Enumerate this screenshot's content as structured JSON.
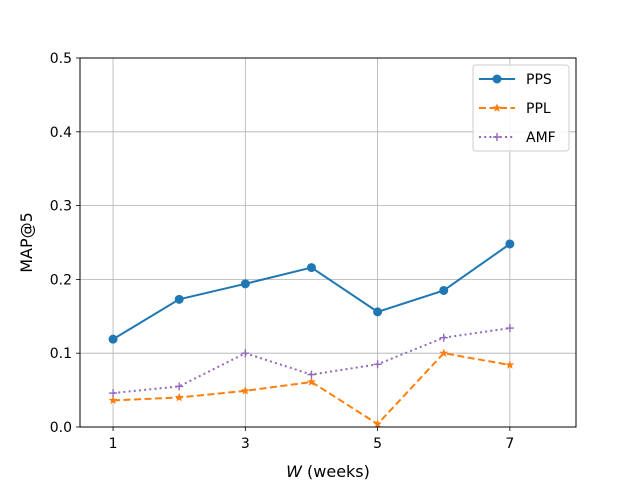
{
  "chart_data": {
    "type": "line",
    "xlabel": {
      "var": "W",
      "rest": " (weeks)"
    },
    "ylabel": "MAP@5",
    "xlim": [
      0.5,
      8
    ],
    "ylim": [
      0,
      0.5
    ],
    "xticks": [
      1,
      3,
      5,
      7
    ],
    "yticks": [
      0.0,
      0.1,
      0.2,
      0.3,
      0.4,
      0.5
    ],
    "ytick_labels": [
      "0.0",
      "0.1",
      "0.2",
      "0.3",
      "0.4",
      "0.5"
    ],
    "grid": true,
    "legend_position": "top-right",
    "x": [
      1,
      2,
      3,
      4,
      5,
      6,
      7
    ],
    "series": [
      {
        "name": "PPS",
        "color": "#1f77b4",
        "marker": "circle",
        "linestyle": "solid",
        "values": [
          0.119,
          0.173,
          0.194,
          0.216,
          0.156,
          0.185,
          0.248
        ]
      },
      {
        "name": "PPL",
        "color": "#ff7f0e",
        "marker": "star",
        "linestyle": "dashed",
        "values": [
          0.036,
          0.04,
          0.049,
          0.061,
          0.004,
          0.1,
          0.084
        ]
      },
      {
        "name": "AMF",
        "color": "#9467bd",
        "marker": "plus",
        "linestyle": "dotted",
        "values": [
          0.046,
          0.055,
          0.1,
          0.071,
          0.085,
          0.121,
          0.134
        ]
      }
    ]
  }
}
